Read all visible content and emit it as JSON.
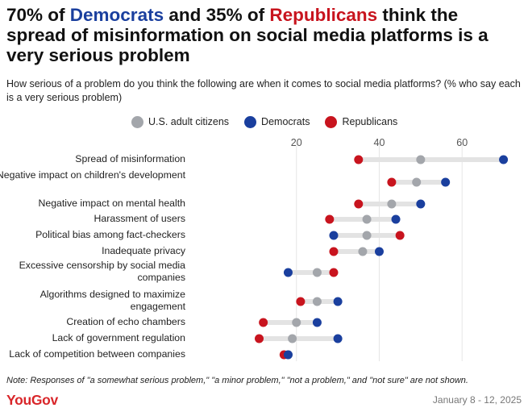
{
  "header": {
    "title_parts": {
      "p1": "70% of ",
      "dem": "Democrats",
      "p2": " and 35% of ",
      "rep": "Republicans",
      "p3": " think the spread of misinformation on social media platforms is a very serious problem"
    },
    "subtitle": "How serious of a problem do you think the following are when it comes to social media platforms? (% who say each is a very serious problem)"
  },
  "colors": {
    "adults": "#a3a6ab",
    "democrats": "#1a3f9e",
    "republicans": "#c8141e",
    "connector": "#e3e3e3",
    "gridline": "#e6e6e6",
    "brand": "#d9262a"
  },
  "chart_data": {
    "type": "dot",
    "xlim": [
      0,
      73
    ],
    "ticks": [
      20,
      40,
      60
    ],
    "grid": true,
    "legend_position": "top",
    "legend": [
      {
        "key": "adults",
        "label": "U.S. adult citizens"
      },
      {
        "key": "democrats",
        "label": "Democrats"
      },
      {
        "key": "republicans",
        "label": "Republicans"
      }
    ],
    "categories": [
      {
        "label": "Spread of misinformation",
        "adults": 50,
        "democrats": 70,
        "republicans": 35
      },
      {
        "label": "Negative impact on children's development",
        "adults": 49,
        "democrats": 56,
        "republicans": 43
      },
      {
        "label": "Negative impact on mental health",
        "adults": 43,
        "democrats": 50,
        "republicans": 35
      },
      {
        "label": "Harassment of users",
        "adults": 37,
        "democrats": 44,
        "republicans": 28
      },
      {
        "label": "Political bias among fact-checkers",
        "adults": 37,
        "democrats": 29,
        "republicans": 45
      },
      {
        "label": "Inadequate privacy",
        "adults": 36,
        "democrats": 40,
        "republicans": 29
      },
      {
        "label": "Excessive censorship by social media companies",
        "adults": 25,
        "democrats": 18,
        "republicans": 29
      },
      {
        "label": "Algorithms designed to maximize engagement",
        "adults": 25,
        "democrats": 30,
        "republicans": 21
      },
      {
        "label": "Creation of echo chambers",
        "adults": 20,
        "democrats": 25,
        "republicans": 12
      },
      {
        "label": "Lack of government regulation",
        "adults": 19,
        "democrats": 30,
        "republicans": 11
      },
      {
        "label": "Lack of competition between companies",
        "adults": 18,
        "democrats": 18,
        "republicans": 17
      }
    ]
  },
  "footer": {
    "note": "Note: Responses of \"a somewhat serious problem,\" \"a minor problem,\" \"not a problem,\" and \"not sure\" are not shown.",
    "logo": "YouGov",
    "date": "January 8 - 12, 2025"
  }
}
